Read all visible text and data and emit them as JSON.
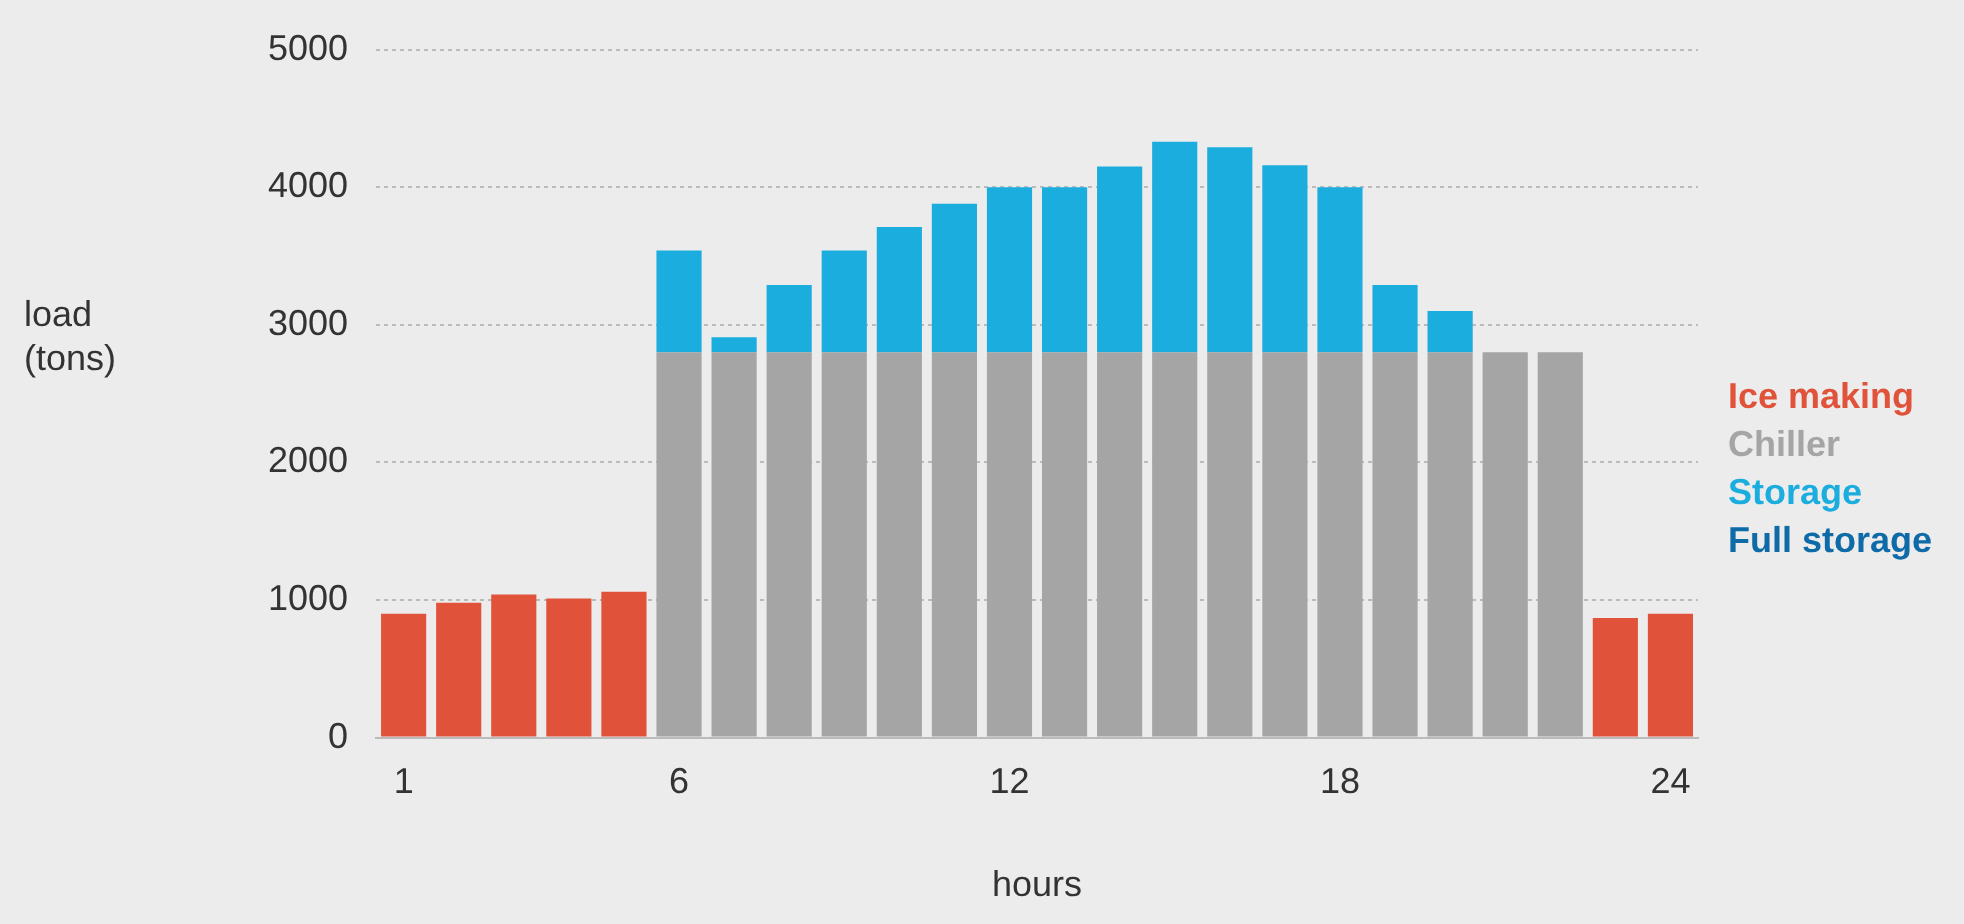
{
  "chart_data": {
    "type": "bar",
    "stacked": true,
    "xlabel": "hours",
    "ylabel": "load (tons)",
    "categories": [
      "1",
      null,
      null,
      null,
      null,
      "6",
      null,
      null,
      null,
      null,
      null,
      "12",
      null,
      null,
      null,
      null,
      null,
      "18",
      null,
      null,
      null,
      null,
      null,
      "24"
    ],
    "series": [
      {
        "name": "Ice making",
        "color": "#e0533a",
        "values": [
          900,
          980,
          1040,
          1010,
          1060,
          null,
          null,
          null,
          null,
          null,
          null,
          null,
          null,
          null,
          null,
          null,
          null,
          null,
          null,
          null,
          null,
          null,
          870,
          900
        ]
      },
      {
        "name": "Chiller",
        "color": "#a5a5a5",
        "values": [
          null,
          null,
          null,
          null,
          null,
          2800,
          2800,
          2800,
          2800,
          2800,
          2800,
          2800,
          2800,
          2800,
          2800,
          2800,
          2800,
          2800,
          2800,
          2800,
          2800,
          2800,
          null,
          null
        ]
      },
      {
        "name": "Storage",
        "color": "#1badde",
        "values": [
          null,
          null,
          null,
          null,
          null,
          740,
          110,
          490,
          740,
          910,
          1080,
          1200,
          1200,
          1350,
          1530,
          1490,
          1360,
          1200,
          490,
          300,
          null,
          null,
          null,
          null
        ]
      },
      {
        "name": "Full storage",
        "color": "#0e6ba8",
        "values": [
          null,
          null,
          null,
          null,
          null,
          null,
          null,
          null,
          null,
          null,
          null,
          null,
          null,
          null,
          null,
          null,
          null,
          null,
          null,
          null,
          null,
          null,
          null,
          null
        ]
      }
    ],
    "ylim": [
      0,
      5000
    ],
    "yticks": [
      0,
      1000,
      2000,
      3000,
      4000,
      5000
    ],
    "grid": "y",
    "legend": "right"
  }
}
